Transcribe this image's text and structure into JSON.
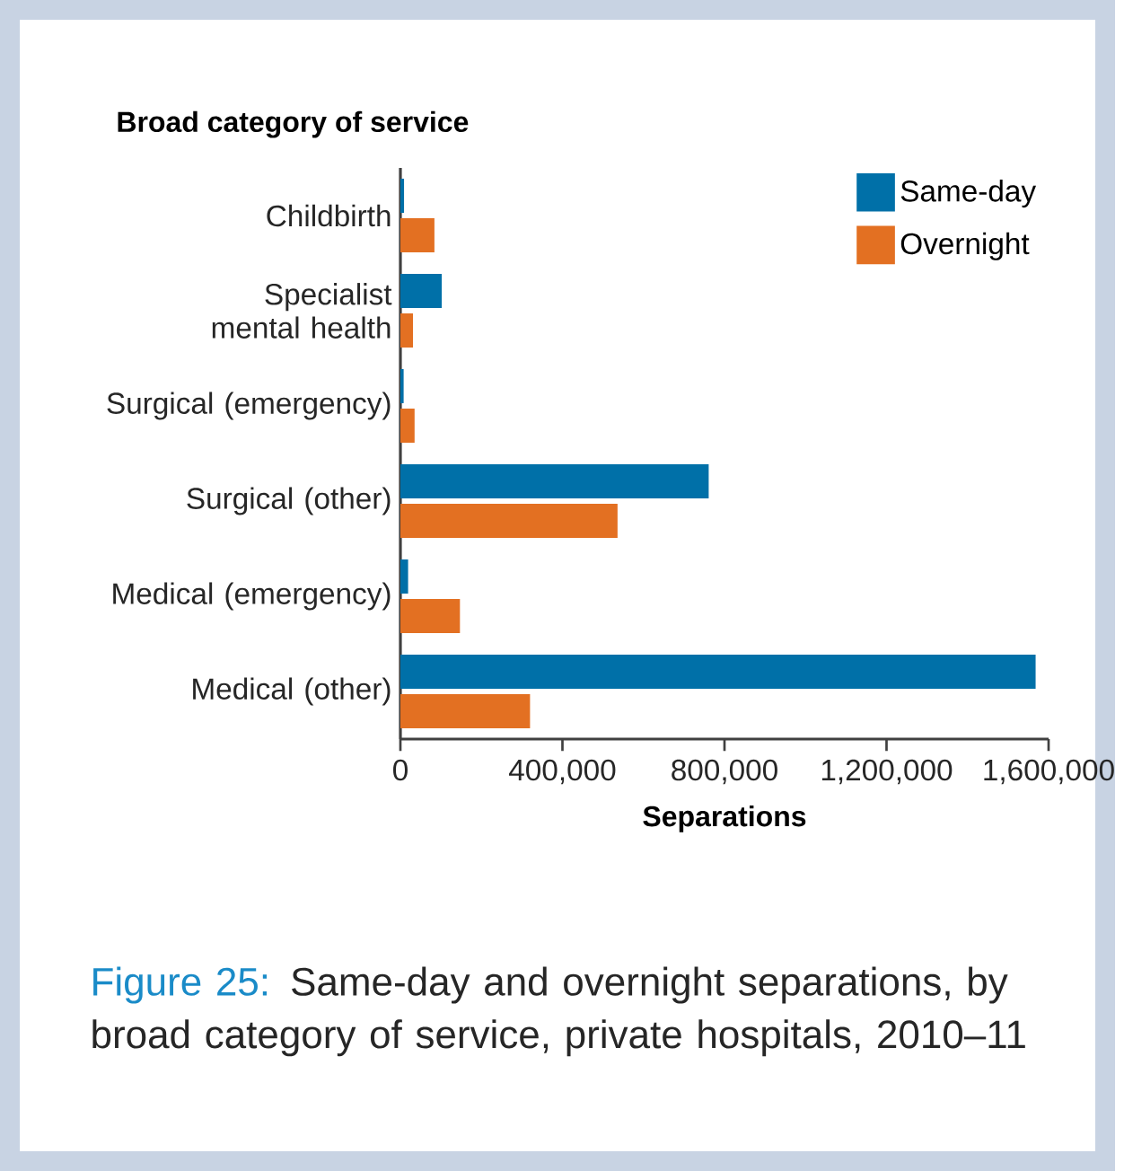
{
  "chart_data": {
    "type": "bar",
    "orientation": "horizontal",
    "ylabel": "Broad category of service",
    "xlabel": "Separations",
    "categories": [
      "Childbirth",
      "Specialist mental health",
      "Surgical (emergency)",
      "Surgical (other)",
      "Medical (emergency)",
      "Medical (other)"
    ],
    "series": [
      {
        "name": "Same-day",
        "color": "#0070a8",
        "values": [
          9000,
          102000,
          8000,
          761000,
          19000,
          1568000
        ]
      },
      {
        "name": "Overnight",
        "color": "#e37022",
        "values": [
          84000,
          31000,
          35000,
          536000,
          147000,
          320000
        ]
      }
    ],
    "xlim": [
      0,
      1600000
    ],
    "xticks": [
      0,
      {
        "value": 400000,
        "label": "400,000"
      },
      {
        "value": 800000,
        "label": "800,000"
      },
      {
        "value": 1200000,
        "label": "1,200,000"
      },
      {
        "value": 1600000,
        "label": "1,600,000"
      }
    ],
    "legend": "top right",
    "annotations": [
      "Figure 25:",
      "Same-day and overnight separations, by broad category of service, private hospitals, 2010–11"
    ]
  }
}
